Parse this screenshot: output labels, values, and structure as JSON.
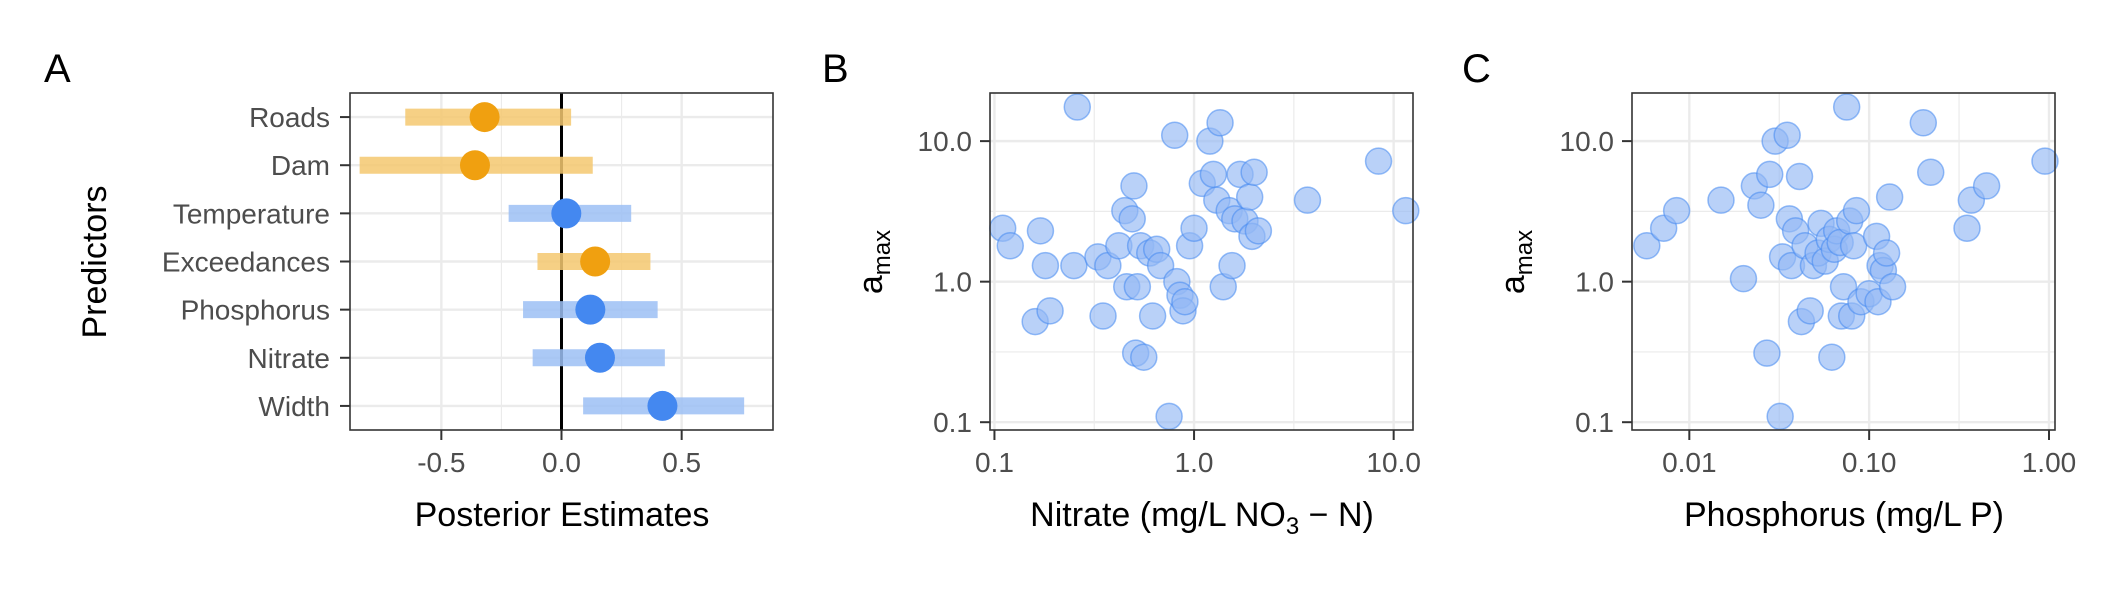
{
  "colors": {
    "orange": "#f0a010",
    "orange_band": "#f5c870",
    "blue": "#4488f0",
    "blue_band": "#9cbff5",
    "blue_point": "#93b8f5",
    "grid": "#ebebeb",
    "axis_text": "#4d4d4d"
  },
  "chart_data": [
    {
      "panel_label": "A",
      "type": "forest",
      "xlabel": "Posterior Estimates",
      "ylabel": "Predictors",
      "xlim": [
        -0.88,
        0.88
      ],
      "xticks": [
        -0.5,
        0.0,
        0.5
      ],
      "xtick_labels": [
        "-0.5",
        "0.0",
        "0.5"
      ],
      "reference_line": 0,
      "grid": true,
      "predictors": [
        {
          "name": "Roads",
          "estimate": -0.32,
          "low": -0.65,
          "high": 0.04,
          "color": "orange"
        },
        {
          "name": "Dam",
          "estimate": -0.36,
          "low": -0.84,
          "high": 0.13,
          "color": "orange"
        },
        {
          "name": "Temperature",
          "estimate": 0.02,
          "low": -0.22,
          "high": 0.29,
          "color": "blue"
        },
        {
          "name": "Exceedances",
          "estimate": 0.14,
          "low": -0.1,
          "high": 0.37,
          "color": "orange"
        },
        {
          "name": "Phosphorus",
          "estimate": 0.12,
          "low": -0.16,
          "high": 0.4,
          "color": "blue"
        },
        {
          "name": "Nitrate",
          "estimate": 0.16,
          "low": -0.12,
          "high": 0.43,
          "color": "blue"
        },
        {
          "name": "Width",
          "estimate": 0.42,
          "low": 0.09,
          "high": 0.76,
          "color": "blue"
        }
      ]
    },
    {
      "panel_label": "B",
      "type": "scatter",
      "scale": "log-log",
      "xlabel": "Nitrate (mg/L NO",
      "xlabel_sub": "3",
      "xlabel_tail": " − N)",
      "ylabel": "a",
      "ylabel_sub": "max",
      "xlim": [
        0.095,
        12.5
      ],
      "ylim": [
        0.088,
        22
      ],
      "xticks": [
        0.1,
        1.0,
        10.0
      ],
      "xtick_labels": [
        "0.1",
        "1.0",
        "10.0"
      ],
      "yticks": [
        0.1,
        1.0,
        10.0
      ],
      "ytick_labels": [
        "0.1",
        "1.0",
        "10.0"
      ],
      "grid": true,
      "points": [
        [
          0.11,
          2.4
        ],
        [
          0.12,
          1.8
        ],
        [
          0.16,
          0.52
        ],
        [
          0.17,
          2.3
        ],
        [
          0.18,
          1.3
        ],
        [
          0.19,
          0.62
        ],
        [
          0.25,
          1.3
        ],
        [
          0.26,
          17.5
        ],
        [
          0.33,
          1.5
        ],
        [
          0.35,
          0.57
        ],
        [
          0.37,
          1.3
        ],
        [
          0.42,
          1.8
        ],
        [
          0.45,
          3.2
        ],
        [
          0.46,
          0.92
        ],
        [
          0.49,
          2.8
        ],
        [
          0.5,
          4.8
        ],
        [
          0.51,
          0.31
        ],
        [
          0.52,
          0.92
        ],
        [
          0.54,
          1.8
        ],
        [
          0.56,
          0.29
        ],
        [
          0.6,
          1.6
        ],
        [
          0.62,
          0.57
        ],
        [
          0.65,
          1.7
        ],
        [
          0.68,
          1.3
        ],
        [
          0.75,
          0.11
        ],
        [
          0.8,
          11.0
        ],
        [
          0.82,
          1.0
        ],
        [
          0.85,
          0.8
        ],
        [
          0.88,
          0.62
        ],
        [
          0.9,
          0.72
        ],
        [
          0.95,
          1.8
        ],
        [
          1.0,
          2.4
        ],
        [
          1.1,
          5.0
        ],
        [
          1.2,
          10.0
        ],
        [
          1.25,
          5.8
        ],
        [
          1.3,
          3.8
        ],
        [
          1.35,
          13.5
        ],
        [
          1.4,
          0.92
        ],
        [
          1.5,
          3.2
        ],
        [
          1.55,
          1.3
        ],
        [
          1.6,
          2.8
        ],
        [
          1.7,
          5.8
        ],
        [
          1.8,
          2.7
        ],
        [
          1.9,
          4.0
        ],
        [
          2.0,
          6.0
        ],
        [
          1.95,
          2.1
        ],
        [
          2.1,
          2.3
        ],
        [
          3.7,
          3.8
        ],
        [
          8.4,
          7.2
        ],
        [
          11.5,
          3.2
        ]
      ]
    },
    {
      "panel_label": "C",
      "type": "scatter",
      "scale": "log-log",
      "xlabel": "Phosphorus (mg/L P)",
      "ylabel": "a",
      "ylabel_sub": "max",
      "xlim": [
        0.0048,
        1.08
      ],
      "ylim": [
        0.088,
        22
      ],
      "xticks": [
        0.01,
        0.1,
        1.0
      ],
      "xtick_labels": [
        "0.01",
        "0.10",
        "1.00"
      ],
      "yticks": [
        0.1,
        1.0,
        10.0
      ],
      "ytick_labels": [
        "0.1",
        "1.0",
        "10.0"
      ],
      "grid": true,
      "points": [
        [
          0.0058,
          1.8
        ],
        [
          0.0072,
          2.4
        ],
        [
          0.0085,
          3.2
        ],
        [
          0.015,
          3.8
        ],
        [
          0.02,
          1.05
        ],
        [
          0.023,
          4.8
        ],
        [
          0.025,
          3.5
        ],
        [
          0.027,
          0.31
        ],
        [
          0.028,
          5.8
        ],
        [
          0.03,
          10.0
        ],
        [
          0.032,
          0.11
        ],
        [
          0.033,
          1.5
        ],
        [
          0.035,
          11.0
        ],
        [
          0.036,
          2.8
        ],
        [
          0.037,
          1.3
        ],
        [
          0.039,
          2.3
        ],
        [
          0.041,
          5.6
        ],
        [
          0.042,
          0.52
        ],
        [
          0.044,
          1.8
        ],
        [
          0.047,
          0.62
        ],
        [
          0.049,
          1.3
        ],
        [
          0.052,
          1.6
        ],
        [
          0.054,
          2.6
        ],
        [
          0.057,
          1.4
        ],
        [
          0.06,
          2.0
        ],
        [
          0.062,
          0.29
        ],
        [
          0.064,
          1.7
        ],
        [
          0.066,
          2.3
        ],
        [
          0.069,
          1.9
        ],
        [
          0.07,
          0.57
        ],
        [
          0.072,
          0.92
        ],
        [
          0.075,
          17.5
        ],
        [
          0.078,
          2.7
        ],
        [
          0.08,
          0.57
        ],
        [
          0.082,
          1.8
        ],
        [
          0.085,
          3.2
        ],
        [
          0.09,
          0.72
        ],
        [
          0.1,
          0.82
        ],
        [
          0.11,
          2.1
        ],
        [
          0.112,
          0.72
        ],
        [
          0.115,
          1.3
        ],
        [
          0.12,
          1.2
        ],
        [
          0.125,
          1.6
        ],
        [
          0.13,
          4.0
        ],
        [
          0.135,
          0.92
        ],
        [
          0.2,
          13.5
        ],
        [
          0.22,
          6.0
        ],
        [
          0.35,
          2.4
        ],
        [
          0.37,
          3.8
        ],
        [
          0.45,
          4.8
        ],
        [
          0.95,
          7.2
        ]
      ]
    }
  ]
}
